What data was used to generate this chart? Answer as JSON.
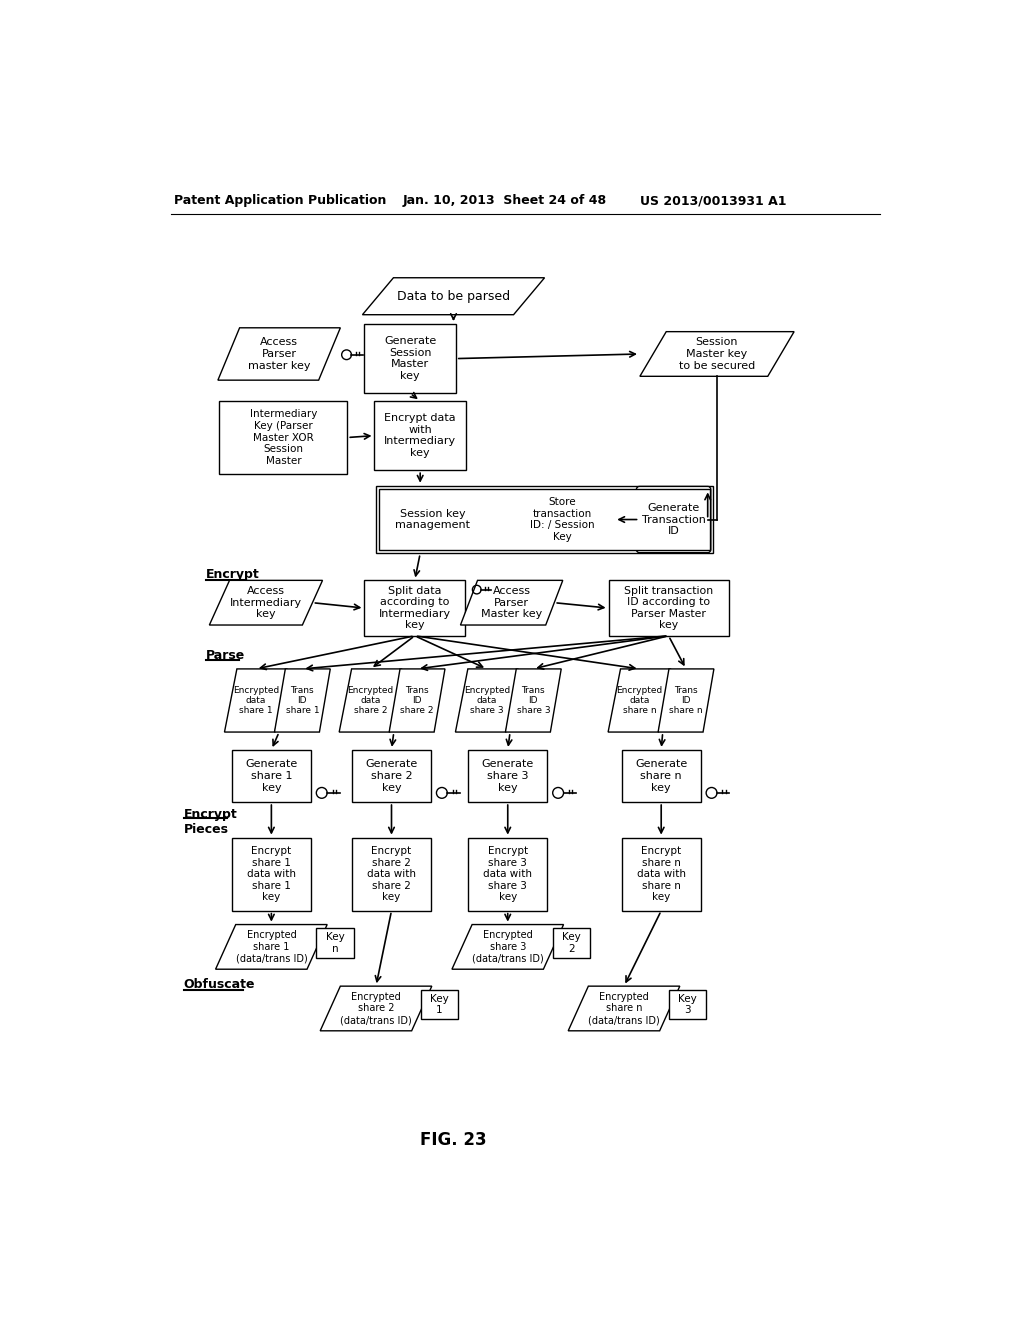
{
  "title_left": "Patent Application Publication",
  "title_mid": "Jan. 10, 2013  Sheet 24 of 48",
  "title_right": "US 2013/0013931 A1",
  "fig_label": "FIG. 23",
  "bg_color": "#ffffff"
}
